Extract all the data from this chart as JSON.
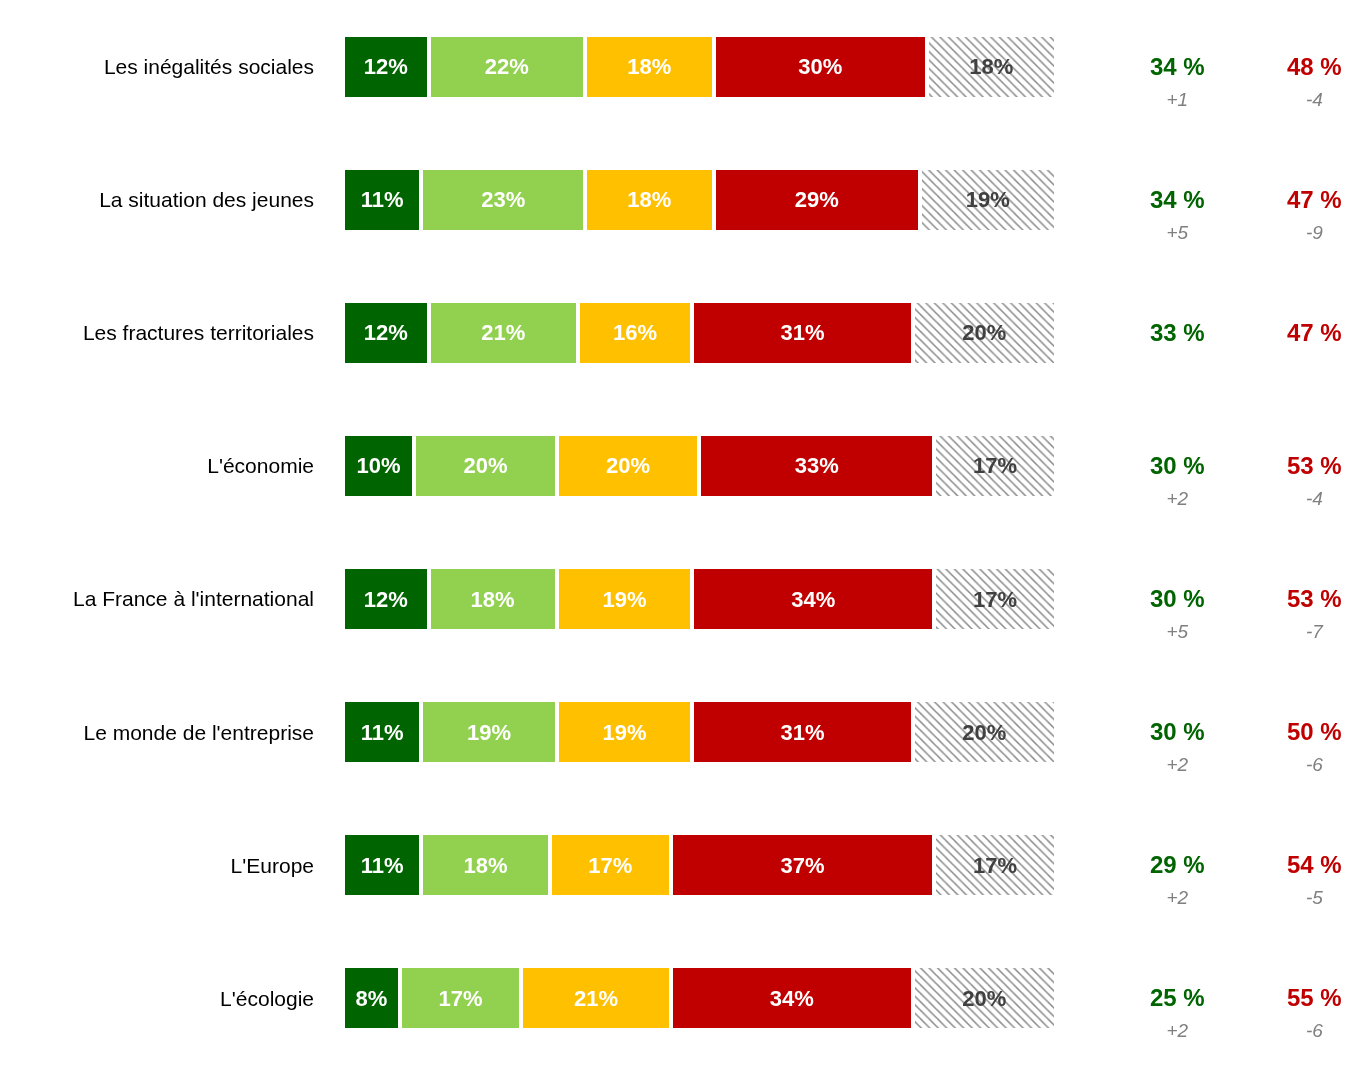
{
  "chart_data": {
    "type": "bar",
    "orientation": "horizontal",
    "stacked": true,
    "tick_labels": false,
    "categories": [
      "Les inégalités sociales",
      "La situation des jeunes",
      "Les fractures territoriales",
      "L'économie",
      "La France à l'international",
      "Le monde de l'entreprise",
      "L'Europe",
      "L'écologie"
    ],
    "series": [
      {
        "color": "#006400",
        "values": [
          12,
          11,
          12,
          10,
          12,
          11,
          11,
          8
        ],
        "value_labels": [
          "12%",
          "11%",
          "12%",
          "10%",
          "12%",
          "11%",
          "11%",
          "8%"
        ]
      },
      {
        "color": "#92d050",
        "values": [
          22,
          23,
          21,
          20,
          18,
          19,
          18,
          17
        ],
        "value_labels": [
          "22%",
          "23%",
          "21%",
          "20%",
          "18%",
          "19%",
          "18%",
          "17%"
        ]
      },
      {
        "color": "#ffc000",
        "values": [
          18,
          18,
          16,
          20,
          19,
          19,
          17,
          21
        ],
        "value_labels": [
          "18%",
          "18%",
          "16%",
          "20%",
          "19%",
          "19%",
          "17%",
          "21%"
        ]
      },
      {
        "color": "#c00000",
        "values": [
          30,
          29,
          31,
          33,
          34,
          31,
          37,
          34
        ],
        "value_labels": [
          "30%",
          "29%",
          "31%",
          "33%",
          "34%",
          "31%",
          "37%",
          "34%"
        ]
      },
      {
        "color": "#ffffff",
        "values": [
          18,
          19,
          20,
          17,
          17,
          20,
          17,
          20
        ],
        "value_labels": [
          "18%",
          "19%",
          "20%",
          "17%",
          "17%",
          "20%",
          "17%",
          "20%"
        ]
      }
    ],
    "annotations": [
      "34 %\n+1",
      "48 %\n-4",
      "34 %\n+5",
      "47 %\n-9",
      "33 %",
      "47 %",
      "30 %\n+2",
      "53 %\n-4",
      "30 %\n+5",
      "53 %\n-7",
      "30 %\n+2",
      "50 %\n-6",
      "29 %\n+2",
      "54 %\n-5",
      "25 %\n+2",
      "55 %\n-6"
    ]
  }
}
